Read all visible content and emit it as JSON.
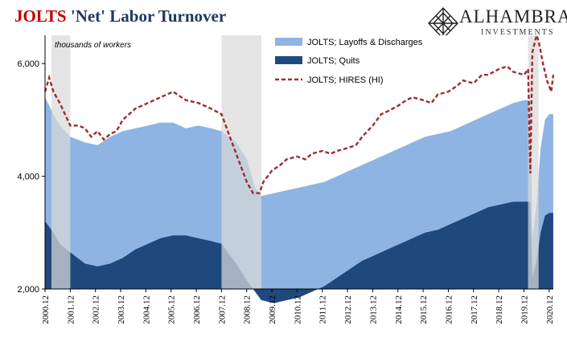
{
  "title_part1": "JOLTS",
  "title_part2": " 'Net' Labor Turnover",
  "logo": {
    "name": "ALHAMBRA",
    "sub": "INVESTMENTS",
    "icon": "diamond-lattice-icon"
  },
  "colors": {
    "layoffs": "#8eb4e3",
    "quits": "#1f497d",
    "hires": "#a02b2b",
    "recession": "#d9d9d9",
    "title_red": "#c00000"
  },
  "chart_data": {
    "type": "area",
    "units_note": "thousands of workers",
    "ylim": [
      2000,
      6500
    ],
    "yticks": [
      2000,
      4000,
      6000
    ],
    "ytick_labels": [
      "2,000",
      "4,000",
      "6,000"
    ],
    "xlim": [
      2000.917,
      2021.083
    ],
    "xtick_labels": [
      "2000.12",
      "2001.12",
      "2002.12",
      "2003.12",
      "2004.12",
      "2005.12",
      "2006.12",
      "2007.12",
      "2008.12",
      "2009.12",
      "2010.12",
      "2011.12",
      "2012.12",
      "2013.12",
      "2014.12",
      "2015.12",
      "2016.12",
      "2017.12",
      "2018.12",
      "2019.12",
      "2020.12"
    ],
    "recessions": [
      [
        2001.17,
        2001.92
      ],
      [
        2007.92,
        2009.5
      ],
      [
        2020.08,
        2020.5
      ]
    ],
    "legend_position": "top-center",
    "series": [
      {
        "name": "JOLTS; Layoffs & Discharges",
        "style": "area",
        "x": [
          2000.92,
          2001.25,
          2001.5,
          2001.92,
          2002.5,
          2003.0,
          2003.5,
          2004.0,
          2004.5,
          2005.0,
          2005.5,
          2006.0,
          2006.5,
          2007.0,
          2007.5,
          2007.92,
          2008.5,
          2008.92,
          2009.25,
          2009.5,
          2010.0,
          2010.5,
          2011.0,
          2011.5,
          2012.0,
          2012.5,
          2013.0,
          2013.5,
          2014.0,
          2014.5,
          2015.0,
          2015.5,
          2016.0,
          2016.5,
          2017.0,
          2017.5,
          2018.0,
          2018.5,
          2019.0,
          2019.5,
          2019.92,
          2020.17,
          2020.25,
          2020.42,
          2020.58,
          2020.75,
          2020.92,
          2021.08
        ],
        "values": [
          5400,
          5100,
          4900,
          4700,
          4600,
          4550,
          4700,
          4800,
          4850,
          4900,
          4950,
          4950,
          4850,
          4900,
          4850,
          4800,
          4600,
          4300,
          3800,
          3650,
          3700,
          3750,
          3800,
          3850,
          3900,
          4000,
          4100,
          4200,
          4300,
          4400,
          4500,
          4600,
          4700,
          4750,
          4800,
          4900,
          5000,
          5100,
          5200,
          5300,
          5350,
          5350,
          2900,
          3500,
          4500,
          5000,
          5100,
          5100
        ]
      },
      {
        "name": "JOLTS; Quits",
        "style": "area",
        "x": [
          2000.92,
          2001.25,
          2001.5,
          2001.92,
          2002.5,
          2003.0,
          2003.5,
          2004.0,
          2004.5,
          2005.0,
          2005.5,
          2006.0,
          2006.5,
          2007.0,
          2007.5,
          2007.92,
          2008.5,
          2008.92,
          2009.25,
          2009.5,
          2010.0,
          2010.5,
          2011.0,
          2011.5,
          2012.0,
          2012.5,
          2013.0,
          2013.5,
          2014.0,
          2014.5,
          2015.0,
          2015.5,
          2016.0,
          2016.5,
          2017.0,
          2017.5,
          2018.0,
          2018.5,
          2019.0,
          2019.5,
          2019.92,
          2020.17,
          2020.25,
          2020.42,
          2020.58,
          2020.75,
          2020.92,
          2021.08
        ],
        "values": [
          3200,
          3000,
          2800,
          2650,
          2450,
          2400,
          2450,
          2550,
          2700,
          2800,
          2900,
          2950,
          2950,
          2900,
          2850,
          2800,
          2450,
          2150,
          1950,
          1800,
          1750,
          1800,
          1850,
          1950,
          2050,
          2200,
          2350,
          2500,
          2600,
          2700,
          2800,
          2900,
          3000,
          3050,
          3150,
          3250,
          3350,
          3450,
          3500,
          3550,
          3550,
          3550,
          2200,
          2500,
          3000,
          3300,
          3350,
          3350
        ]
      },
      {
        "name": "JOLTS; HIRES (HI)",
        "style": "dashed-line",
        "x": [
          2000.92,
          2001.08,
          2001.25,
          2001.5,
          2001.92,
          2002.25,
          2002.5,
          2002.75,
          2003.0,
          2003.25,
          2003.5,
          2003.75,
          2004.0,
          2004.5,
          2005.0,
          2005.5,
          2006.0,
          2006.5,
          2007.0,
          2007.5,
          2007.92,
          2008.25,
          2008.5,
          2008.75,
          2008.92,
          2009.17,
          2009.42,
          2009.58,
          2009.92,
          2010.25,
          2010.5,
          2010.92,
          2011.25,
          2011.5,
          2011.92,
          2012.25,
          2012.5,
          2012.92,
          2013.25,
          2013.5,
          2013.92,
          2014.25,
          2014.5,
          2014.92,
          2015.25,
          2015.5,
          2015.92,
          2016.25,
          2016.5,
          2016.92,
          2017.25,
          2017.5,
          2017.92,
          2018.25,
          2018.5,
          2018.92,
          2019.25,
          2019.5,
          2019.92,
          2020.08,
          2020.17,
          2020.25,
          2020.42,
          2020.5,
          2020.67,
          2020.83,
          2021.0,
          2021.08
        ],
        "values": [
          5500,
          5750,
          5500,
          5300,
          4900,
          4900,
          4850,
          4700,
          4800,
          4650,
          4750,
          4800,
          5000,
          5200,
          5300,
          5400,
          5500,
          5350,
          5300,
          5200,
          5100,
          4700,
          4400,
          4100,
          3900,
          3700,
          3700,
          3900,
          4100,
          4200,
          4300,
          4350,
          4300,
          4400,
          4450,
          4400,
          4450,
          4500,
          4550,
          4700,
          4900,
          5100,
          5150,
          5250,
          5350,
          5400,
          5350,
          5300,
          5450,
          5500,
          5600,
          5700,
          5650,
          5800,
          5800,
          5900,
          5950,
          5850,
          5800,
          5900,
          4050,
          6200,
          6500,
          6400,
          6000,
          5700,
          5500,
          5800
        ]
      }
    ]
  }
}
